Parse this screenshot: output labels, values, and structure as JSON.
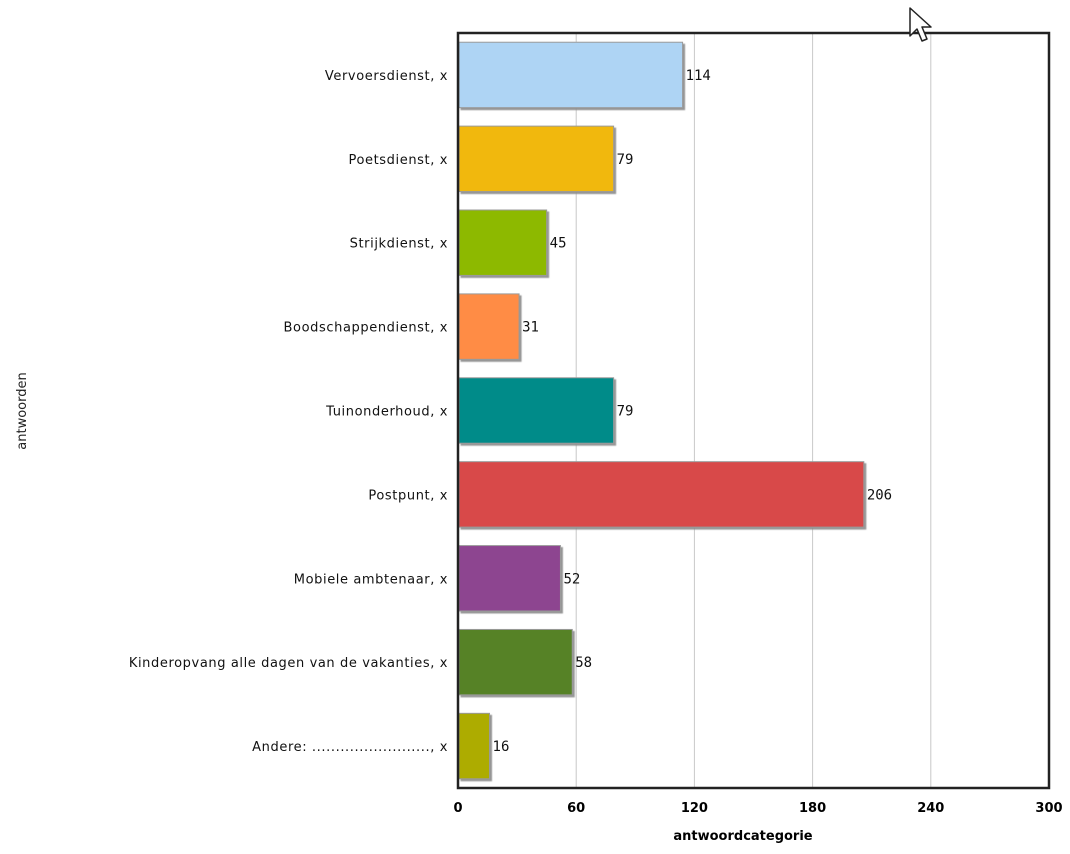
{
  "chart_data": {
    "type": "bar",
    "orientation": "horizontal",
    "categories": [
      "Vervoersdienst, x",
      "Poetsdienst, x",
      "Strijkdienst, x",
      "Boodschappendienst, x",
      "Tuinonderhoud, x",
      "Postpunt, x",
      "Mobiele ambtenaar, x",
      "Kinderopvang alle dagen van de vakanties, x",
      "Andere: ........................., x"
    ],
    "values": [
      114,
      79,
      45,
      31,
      79,
      206,
      52,
      58,
      16
    ],
    "colors": [
      "#aed4f4",
      "#f1b80f",
      "#8db900",
      "#ff8c44",
      "#008b89",
      "#d84a4a",
      "#8d4490",
      "#578228",
      "#adac00"
    ],
    "xlabel": "antwoordcategorie",
    "ylabel": "antwoorden",
    "xlim": [
      0,
      300
    ],
    "xticks": [
      "0",
      "60",
      "120",
      "180",
      "240",
      "300"
    ],
    "grid": "vertical",
    "legend": "none"
  }
}
